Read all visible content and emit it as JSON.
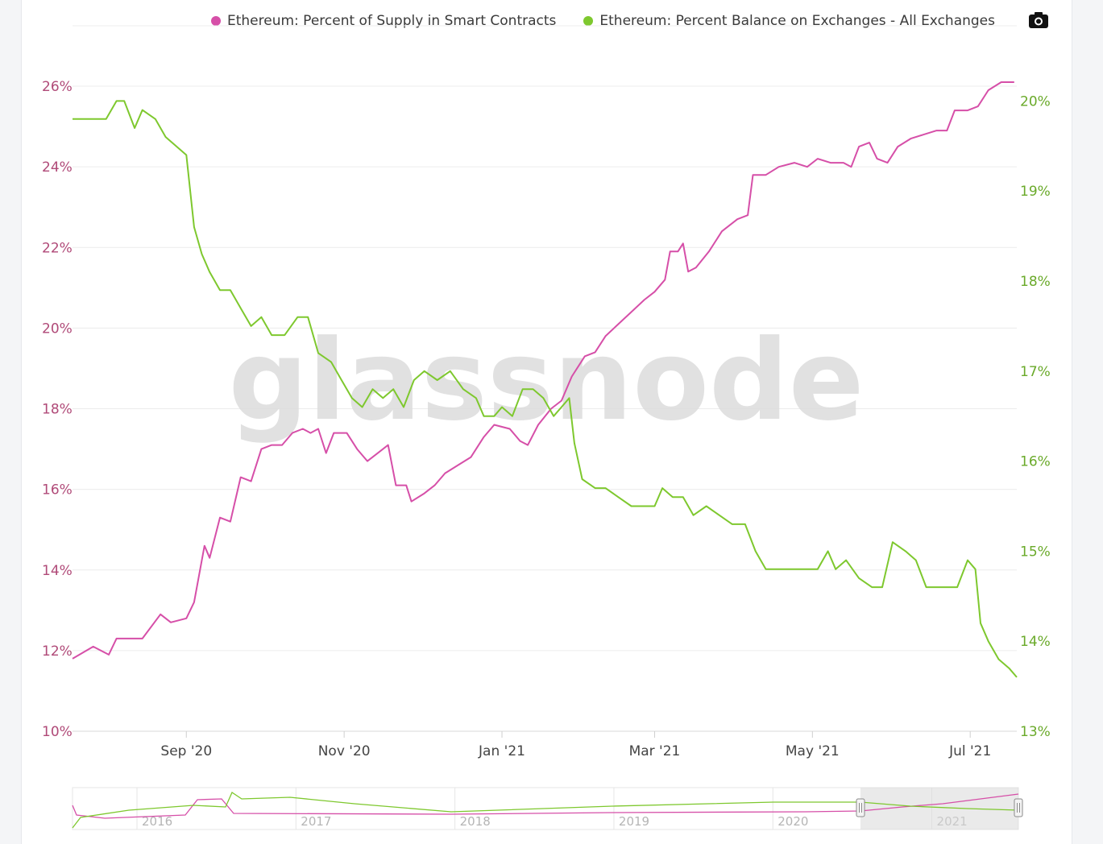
{
  "legend": {
    "series1": "Ethereum: Percent of Supply in Smart Contracts",
    "series2": "Ethereum: Percent Balance on Exchanges - All Exchanges"
  },
  "watermark": "glassnode",
  "icons": {
    "export": "camera-icon"
  },
  "colors": {
    "series1": "#d64fa8",
    "series2": "#7ec82e",
    "left_axis_text": "#b04a78",
    "right_axis_text": "#6aaa2a"
  },
  "chart_data": {
    "type": "line",
    "x_ticks": [
      "Sep '20",
      "Nov '20",
      "Jan '21",
      "Mar '21",
      "May '21",
      "Jul '21"
    ],
    "x_tick_dates": [
      "2020-09-01",
      "2020-11-01",
      "2021-01-01",
      "2021-03-01",
      "2021-05-01",
      "2021-07-01"
    ],
    "x_range": [
      "2020-07-19",
      "2021-07-19"
    ],
    "left_axis": {
      "ticks": [
        "10%",
        "12%",
        "14%",
        "16%",
        "18%",
        "20%",
        "22%",
        "24%",
        "26%"
      ],
      "range": [
        10,
        26.5
      ]
    },
    "right_axis": {
      "ticks": [
        "13%",
        "14%",
        "15%",
        "16%",
        "17%",
        "18%",
        "19%",
        "20%"
      ],
      "range": [
        13,
        20.12
      ]
    },
    "grid": "horizontal",
    "legend_position": "top",
    "series": [
      {
        "name": "Ethereum: Percent of Supply in Smart Contracts",
        "axis": "left",
        "points": [
          [
            "2020-07-19",
            11.8
          ],
          [
            "2020-07-27",
            12.1
          ],
          [
            "2020-08-02",
            11.9
          ],
          [
            "2020-08-05",
            12.3
          ],
          [
            "2020-08-15",
            12.3
          ],
          [
            "2020-08-22",
            12.9
          ],
          [
            "2020-08-26",
            12.7
          ],
          [
            "2020-09-01",
            12.8
          ],
          [
            "2020-09-04",
            13.2
          ],
          [
            "2020-09-08",
            14.6
          ],
          [
            "2020-09-10",
            14.3
          ],
          [
            "2020-09-14",
            15.3
          ],
          [
            "2020-09-18",
            15.2
          ],
          [
            "2020-09-22",
            16.3
          ],
          [
            "2020-09-26",
            16.2
          ],
          [
            "2020-09-30",
            17.0
          ],
          [
            "2020-10-04",
            17.1
          ],
          [
            "2020-10-08",
            17.1
          ],
          [
            "2020-10-12",
            17.4
          ],
          [
            "2020-10-16",
            17.5
          ],
          [
            "2020-10-19",
            17.4
          ],
          [
            "2020-10-22",
            17.5
          ],
          [
            "2020-10-25",
            16.9
          ],
          [
            "2020-10-28",
            17.4
          ],
          [
            "2020-11-02",
            17.4
          ],
          [
            "2020-11-06",
            17.0
          ],
          [
            "2020-11-10",
            16.7
          ],
          [
            "2020-11-14",
            16.9
          ],
          [
            "2020-11-18",
            17.1
          ],
          [
            "2020-11-21",
            16.1
          ],
          [
            "2020-11-25",
            16.1
          ],
          [
            "2020-11-27",
            15.7
          ],
          [
            "2020-12-02",
            15.9
          ],
          [
            "2020-12-06",
            16.1
          ],
          [
            "2020-12-10",
            16.4
          ],
          [
            "2020-12-15",
            16.6
          ],
          [
            "2020-12-20",
            16.8
          ],
          [
            "2020-12-25",
            17.3
          ],
          [
            "2020-12-29",
            17.6
          ],
          [
            "2021-01-04",
            17.5
          ],
          [
            "2021-01-08",
            17.2
          ],
          [
            "2021-01-11",
            17.1
          ],
          [
            "2021-01-15",
            17.6
          ],
          [
            "2021-01-20",
            18.0
          ],
          [
            "2021-01-24",
            18.2
          ],
          [
            "2021-01-28",
            18.8
          ],
          [
            "2021-02-02",
            19.3
          ],
          [
            "2021-02-06",
            19.4
          ],
          [
            "2021-02-10",
            19.8
          ],
          [
            "2021-02-15",
            20.1
          ],
          [
            "2021-02-20",
            20.4
          ],
          [
            "2021-02-25",
            20.7
          ],
          [
            "2021-03-01",
            20.9
          ],
          [
            "2021-03-05",
            21.2
          ],
          [
            "2021-03-07",
            21.9
          ],
          [
            "2021-03-10",
            21.9
          ],
          [
            "2021-03-12",
            22.1
          ],
          [
            "2021-03-14",
            21.4
          ],
          [
            "2021-03-17",
            21.5
          ],
          [
            "2021-03-22",
            21.9
          ],
          [
            "2021-03-27",
            22.4
          ],
          [
            "2021-04-02",
            22.7
          ],
          [
            "2021-04-06",
            22.8
          ],
          [
            "2021-04-08",
            23.8
          ],
          [
            "2021-04-13",
            23.8
          ],
          [
            "2021-04-18",
            24.0
          ],
          [
            "2021-04-24",
            24.1
          ],
          [
            "2021-04-29",
            24.0
          ],
          [
            "2021-05-03",
            24.2
          ],
          [
            "2021-05-08",
            24.1
          ],
          [
            "2021-05-13",
            24.1
          ],
          [
            "2021-05-16",
            24.0
          ],
          [
            "2021-05-19",
            24.5
          ],
          [
            "2021-05-23",
            24.6
          ],
          [
            "2021-05-26",
            24.2
          ],
          [
            "2021-05-30",
            24.1
          ],
          [
            "2021-06-03",
            24.5
          ],
          [
            "2021-06-08",
            24.7
          ],
          [
            "2021-06-13",
            24.8
          ],
          [
            "2021-06-18",
            24.9
          ],
          [
            "2021-06-22",
            24.9
          ],
          [
            "2021-06-25",
            25.4
          ],
          [
            "2021-06-30",
            25.4
          ],
          [
            "2021-07-04",
            25.5
          ],
          [
            "2021-07-08",
            25.9
          ],
          [
            "2021-07-13",
            26.1
          ],
          [
            "2021-07-18",
            26.1
          ]
        ]
      },
      {
        "name": "Ethereum: Percent Balance on Exchanges - All Exchanges",
        "axis": "right",
        "points": [
          [
            "2020-07-19",
            19.8
          ],
          [
            "2020-07-26",
            19.8
          ],
          [
            "2020-08-01",
            19.8
          ],
          [
            "2020-08-05",
            20.0
          ],
          [
            "2020-08-08",
            20.0
          ],
          [
            "2020-08-12",
            19.7
          ],
          [
            "2020-08-15",
            19.9
          ],
          [
            "2020-08-20",
            19.8
          ],
          [
            "2020-08-24",
            19.6
          ],
          [
            "2020-08-28",
            19.5
          ],
          [
            "2020-09-01",
            19.4
          ],
          [
            "2020-09-04",
            18.6
          ],
          [
            "2020-09-07",
            18.3
          ],
          [
            "2020-09-10",
            18.1
          ],
          [
            "2020-09-14",
            17.9
          ],
          [
            "2020-09-18",
            17.9
          ],
          [
            "2020-09-22",
            17.7
          ],
          [
            "2020-09-26",
            17.5
          ],
          [
            "2020-09-30",
            17.6
          ],
          [
            "2020-10-04",
            17.4
          ],
          [
            "2020-10-09",
            17.4
          ],
          [
            "2020-10-14",
            17.6
          ],
          [
            "2020-10-18",
            17.6
          ],
          [
            "2020-10-22",
            17.2
          ],
          [
            "2020-10-27",
            17.1
          ],
          [
            "2020-10-31",
            16.9
          ],
          [
            "2020-11-04",
            16.7
          ],
          [
            "2020-11-08",
            16.6
          ],
          [
            "2020-11-12",
            16.8
          ],
          [
            "2020-11-16",
            16.7
          ],
          [
            "2020-11-20",
            16.8
          ],
          [
            "2020-11-24",
            16.6
          ],
          [
            "2020-11-28",
            16.9
          ],
          [
            "2020-12-02",
            17.0
          ],
          [
            "2020-12-07",
            16.9
          ],
          [
            "2020-12-12",
            17.0
          ],
          [
            "2020-12-17",
            16.8
          ],
          [
            "2020-12-22",
            16.7
          ],
          [
            "2020-12-25",
            16.5
          ],
          [
            "2020-12-29",
            16.5
          ],
          [
            "2021-01-01",
            16.6
          ],
          [
            "2021-01-05",
            16.5
          ],
          [
            "2021-01-09",
            16.8
          ],
          [
            "2021-01-13",
            16.8
          ],
          [
            "2021-01-17",
            16.7
          ],
          [
            "2021-01-21",
            16.5
          ],
          [
            "2021-01-24",
            16.6
          ],
          [
            "2021-01-27",
            16.7
          ],
          [
            "2021-01-29",
            16.2
          ],
          [
            "2021-02-01",
            15.8
          ],
          [
            "2021-02-06",
            15.7
          ],
          [
            "2021-02-10",
            15.7
          ],
          [
            "2021-02-15",
            15.6
          ],
          [
            "2021-02-20",
            15.5
          ],
          [
            "2021-02-25",
            15.5
          ],
          [
            "2021-03-01",
            15.5
          ],
          [
            "2021-03-04",
            15.7
          ],
          [
            "2021-03-08",
            15.6
          ],
          [
            "2021-03-12",
            15.6
          ],
          [
            "2021-03-16",
            15.4
          ],
          [
            "2021-03-21",
            15.5
          ],
          [
            "2021-03-26",
            15.4
          ],
          [
            "2021-03-31",
            15.3
          ],
          [
            "2021-04-05",
            15.3
          ],
          [
            "2021-04-09",
            15.0
          ],
          [
            "2021-04-13",
            14.8
          ],
          [
            "2021-04-18",
            14.8
          ],
          [
            "2021-04-23",
            14.8
          ],
          [
            "2021-04-27",
            14.8
          ],
          [
            "2021-05-03",
            14.8
          ],
          [
            "2021-05-07",
            15.0
          ],
          [
            "2021-05-10",
            14.8
          ],
          [
            "2021-05-14",
            14.9
          ],
          [
            "2021-05-19",
            14.7
          ],
          [
            "2021-05-24",
            14.6
          ],
          [
            "2021-05-28",
            14.6
          ],
          [
            "2021-06-01",
            15.1
          ],
          [
            "2021-06-06",
            15.0
          ],
          [
            "2021-06-10",
            14.9
          ],
          [
            "2021-06-14",
            14.6
          ],
          [
            "2021-06-18",
            14.6
          ],
          [
            "2021-06-22",
            14.6
          ],
          [
            "2021-06-26",
            14.6
          ],
          [
            "2021-06-30",
            14.9
          ],
          [
            "2021-07-03",
            14.8
          ],
          [
            "2021-07-05",
            14.2
          ],
          [
            "2021-07-08",
            14.0
          ],
          [
            "2021-07-12",
            13.8
          ],
          [
            "2021-07-16",
            13.7
          ],
          [
            "2021-07-19",
            13.6
          ]
        ]
      }
    ]
  },
  "navigator": {
    "labels": [
      "2016",
      "2017",
      "2018",
      "2019",
      "2020",
      "2021"
    ]
  }
}
